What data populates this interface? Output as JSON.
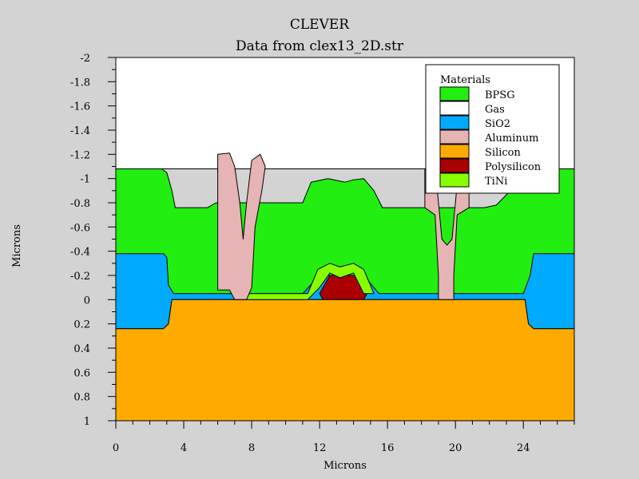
{
  "title": "CLEVER",
  "subtitle": "Data from clex13_2D.str",
  "xlabel": "Microns",
  "ylabel": "Microns",
  "legend": {
    "title": "Materials",
    "placement": "top-right",
    "entries": [
      {
        "name": "BPSG",
        "color": "#22ee11"
      },
      {
        "name": "Gas",
        "color": "#ffffff"
      },
      {
        "name": "SiO2",
        "color": "#00aaff"
      },
      {
        "name": "Aluminum",
        "color": "#e6b4b4"
      },
      {
        "name": "Silicon",
        "color": "#ffaa00"
      },
      {
        "name": "Polysilicon",
        "color": "#aa0000"
      },
      {
        "name": "TiNi",
        "color": "#88ff00"
      }
    ]
  },
  "chart_data": {
    "type": "area",
    "title": "CLEVER",
    "subtitle": "Data from clex13_2D.str",
    "xlabel": "Microns",
    "ylabel": "Microns",
    "xlim": [
      0,
      27
    ],
    "ylim": [
      -2,
      1
    ],
    "y_inverted": true,
    "grid": false,
    "legend_placement": "top-right",
    "x_ticks": [
      "0",
      "4",
      "8",
      "12",
      "16",
      "20",
      "24"
    ],
    "y_ticks": [
      "-2",
      "-1.8",
      "-1.6",
      "-1.4",
      "-1.2",
      "-1",
      "-0.8",
      "-0.6",
      "-0.4",
      "-0.2",
      "0",
      "0.2",
      "0.4",
      "0.6",
      "0.8",
      "1"
    ],
    "regions": [
      {
        "material": "Gas",
        "color": "#ffffff",
        "points": [
          [
            0,
            -2
          ],
          [
            27,
            -2
          ],
          [
            27,
            -1.08
          ],
          [
            0,
            -1.08
          ]
        ]
      },
      {
        "material": "BPSG",
        "color": "#22ee11",
        "points": [
          [
            0,
            -1.08
          ],
          [
            2.7,
            -1.08
          ],
          [
            3.0,
            -1.05
          ],
          [
            3.3,
            -0.9
          ],
          [
            3.5,
            -0.76
          ],
          [
            5.4,
            -0.76
          ],
          [
            5.9,
            -0.8
          ],
          [
            8.7,
            -0.8
          ],
          [
            11.0,
            -0.8
          ],
          [
            11.5,
            -0.97
          ],
          [
            12.5,
            -1.0
          ],
          [
            13.5,
            -0.97
          ],
          [
            14.0,
            -0.99
          ],
          [
            14.6,
            -1.0
          ],
          [
            15.2,
            -0.9
          ],
          [
            15.7,
            -0.76
          ],
          [
            17.6,
            -0.76
          ],
          [
            19.0,
            -0.76
          ],
          [
            21.7,
            -0.76
          ],
          [
            22.4,
            -0.78
          ],
          [
            24.5,
            -1.08
          ],
          [
            27,
            -1.08
          ],
          [
            27,
            0
          ],
          [
            0,
            0
          ]
        ]
      },
      {
        "material": "SiO2",
        "color": "#00aaff",
        "points": [
          [
            0,
            -0.38
          ],
          [
            2.8,
            -0.38
          ],
          [
            3.0,
            -0.35
          ],
          [
            3.1,
            -0.12
          ],
          [
            3.4,
            -0.05
          ],
          [
            11.0,
            -0.05
          ],
          [
            12.0,
            -0.2
          ],
          [
            14.6,
            -0.2
          ],
          [
            15.5,
            -0.05
          ],
          [
            24.0,
            -0.05
          ],
          [
            24.4,
            -0.2
          ],
          [
            24.6,
            -0.38
          ],
          [
            27,
            -0.38
          ],
          [
            27,
            0.24
          ],
          [
            24.6,
            0.24
          ],
          [
            24.3,
            0.2
          ],
          [
            24.1,
            0
          ],
          [
            3.3,
            0
          ],
          [
            3.1,
            0.2
          ],
          [
            2.8,
            0.24
          ],
          [
            0,
            0.24
          ]
        ]
      },
      {
        "material": "Silicon",
        "color": "#ffaa00",
        "points": [
          [
            3.3,
            0
          ],
          [
            24.1,
            0
          ],
          [
            24.3,
            0.2
          ],
          [
            24.6,
            0.24
          ],
          [
            27,
            0.24
          ],
          [
            27,
            1
          ],
          [
            0,
            1
          ],
          [
            0,
            0.24
          ],
          [
            2.8,
            0.24
          ],
          [
            3.1,
            0.2
          ]
        ]
      },
      {
        "material": "Polysilicon",
        "color": "#aa0000",
        "points": [
          [
            12.0,
            -0.05
          ],
          [
            12.6,
            -0.2
          ],
          [
            14.2,
            -0.2
          ],
          [
            14.8,
            -0.05
          ],
          [
            14.6,
            0
          ],
          [
            12.2,
            0
          ]
        ]
      },
      {
        "material": "TiNi",
        "color": "#88ff00",
        "points": [
          [
            7.0,
            -0.05
          ],
          [
            11.3,
            -0.05
          ],
          [
            11.9,
            -0.25
          ],
          [
            12.6,
            -0.3
          ],
          [
            13.2,
            -0.27
          ],
          [
            14.0,
            -0.3
          ],
          [
            14.6,
            -0.25
          ],
          [
            15.2,
            -0.05
          ],
          [
            14.6,
            -0.05
          ],
          [
            14.0,
            -0.22
          ],
          [
            13.2,
            -0.18
          ],
          [
            12.6,
            -0.22
          ],
          [
            12.0,
            -0.1
          ],
          [
            11.3,
            0
          ],
          [
            7.0,
            0
          ]
        ]
      },
      {
        "material": "Aluminum",
        "color": "#e6b4b4",
        "points": [
          [
            6.0,
            -0.08
          ],
          [
            6.0,
            -1.2
          ],
          [
            6.7,
            -1.21
          ],
          [
            7.0,
            -1.1
          ],
          [
            7.3,
            -0.8
          ],
          [
            7.5,
            -0.5
          ],
          [
            7.7,
            -0.8
          ],
          [
            8.0,
            -1.15
          ],
          [
            8.5,
            -1.2
          ],
          [
            8.8,
            -1.1
          ],
          [
            8.6,
            -0.9
          ],
          [
            8.2,
            -0.6
          ],
          [
            8.0,
            -0.1
          ],
          [
            7.7,
            0
          ],
          [
            7.0,
            0
          ],
          [
            6.7,
            -0.08
          ]
        ]
      },
      {
        "material": "Aluminum",
        "color": "#e6b4b4",
        "points": [
          [
            18.2,
            -1.08
          ],
          [
            18.8,
            -1.1
          ],
          [
            19.2,
            -0.5
          ],
          [
            19.5,
            -0.45
          ],
          [
            19.8,
            -0.5
          ],
          [
            20.2,
            -1.1
          ],
          [
            20.8,
            -1.08
          ],
          [
            20.8,
            -0.76
          ],
          [
            20.1,
            -0.7
          ],
          [
            19.9,
            -0.2
          ],
          [
            19.9,
            0
          ],
          [
            19.0,
            0
          ],
          [
            19.0,
            -0.2
          ],
          [
            18.8,
            -0.7
          ],
          [
            18.2,
            -0.76
          ]
        ]
      }
    ]
  }
}
